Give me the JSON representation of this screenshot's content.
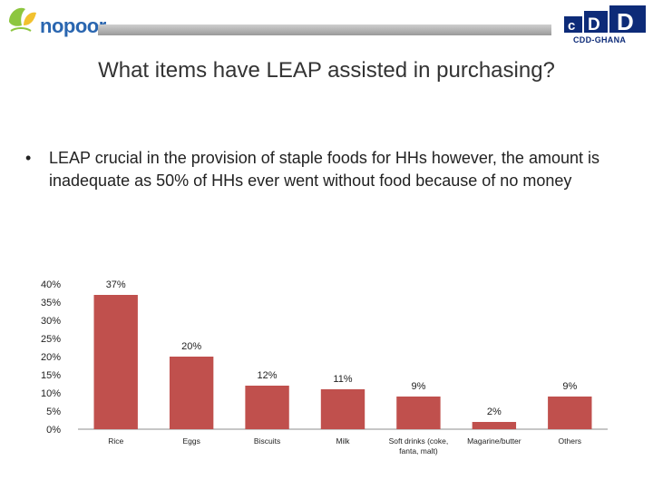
{
  "header": {
    "logo_left_text": "nopoor",
    "logo_right_text": "CDD-GHANA",
    "logo_right_mark": "cDD",
    "bar_color": "#a9a9a9"
  },
  "slide": {
    "title": "What items have LEAP assisted in purchasing?",
    "bullet_symbol": "•",
    "bullet": "LEAP crucial in the provision of staple foods for HHs however, the amount is inadequate as 50% of HHs ever went without food because of no money"
  },
  "chart_data": {
    "type": "bar",
    "categories": [
      "Rice",
      "Eggs",
      "Biscuits",
      "Milk",
      "Soft drinks (coke, fanta, malt)",
      "Magarine/butter",
      "Others"
    ],
    "category_lines": [
      [
        "Rice"
      ],
      [
        "Eggs"
      ],
      [
        "Biscuits"
      ],
      [
        "Milk"
      ],
      [
        "Soft drinks (coke,",
        "fanta, malt)"
      ],
      [
        "Magarine/butter"
      ],
      [
        "Others"
      ]
    ],
    "values": [
      37,
      20,
      12,
      11,
      9,
      2,
      9
    ],
    "data_labels": [
      "37%",
      "20%",
      "12%",
      "11%",
      "9%",
      "2%",
      "9%"
    ],
    "yticks": [
      "0%",
      "5%",
      "10%",
      "15%",
      "20%",
      "25%",
      "30%",
      "35%",
      "40%"
    ],
    "ylim": [
      0,
      40
    ],
    "bar_color": "#c0504d",
    "grid": false
  }
}
